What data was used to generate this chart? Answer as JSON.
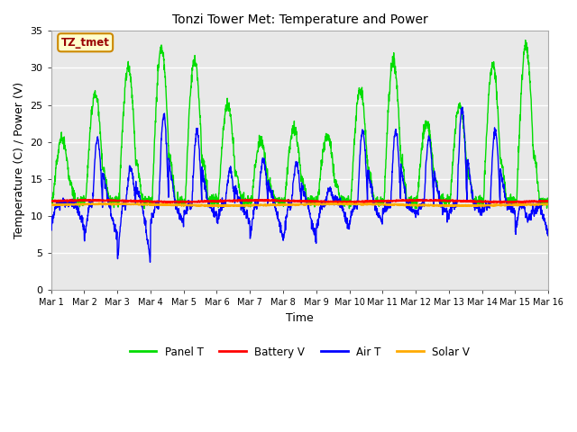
{
  "title": "Tonzi Tower Met: Temperature and Power",
  "xlabel": "Time",
  "ylabel": "Temperature (C) / Power (V)",
  "xlim": [
    0,
    15
  ],
  "ylim": [
    0,
    35
  ],
  "yticks": [
    0,
    5,
    10,
    15,
    20,
    25,
    30,
    35
  ],
  "xtick_labels": [
    "Mar 1",
    "Mar 2",
    "Mar 3",
    "Mar 4",
    "Mar 5",
    "Mar 6",
    "Mar 7",
    "Mar 8",
    "Mar 9",
    "Mar 10",
    "Mar 11",
    "Mar 12",
    "Mar 13",
    "Mar 14",
    "Mar 15",
    "Mar 16"
  ],
  "fig_bg_color": "#ffffff",
  "plot_bg_color": "#e8e8e8",
  "grid_color": "#ffffff",
  "colors": {
    "panel_t": "#00dd00",
    "battery_v": "#ff0000",
    "air_t": "#0000ff",
    "solar_v": "#ffaa00"
  },
  "legend_label": "TZ_tmet",
  "legend_entries": [
    "Panel T",
    "Battery V",
    "Air T",
    "Solar V"
  ]
}
